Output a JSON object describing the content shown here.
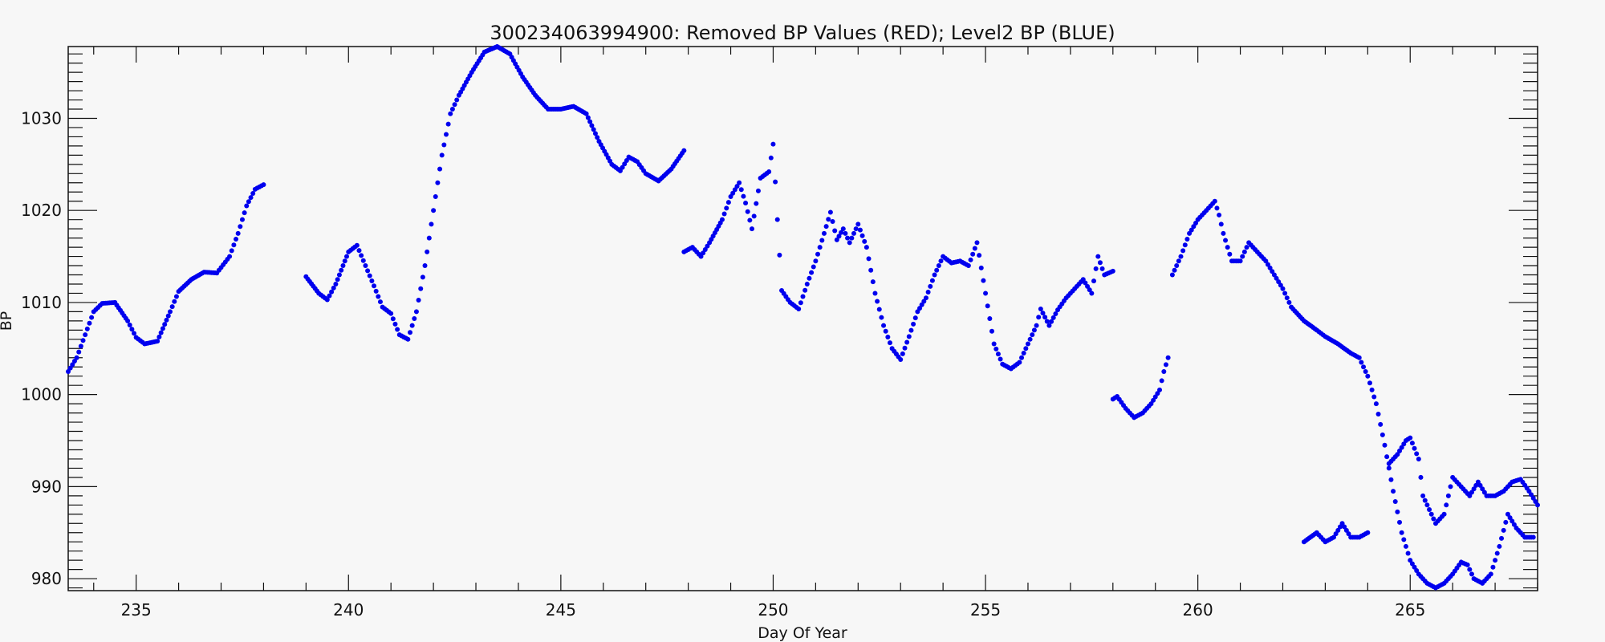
{
  "chart_data": {
    "type": "scatter",
    "title": "300234063994900: Removed BP Values (RED); Level2 BP (BLUE)",
    "xlabel": "Day Of Year",
    "ylabel": "BP",
    "xlim": [
      233.4,
      268.0
    ],
    "ylim": [
      978.7,
      1037.8
    ],
    "x_ticks": [
      235,
      240,
      245,
      250,
      255,
      260,
      265
    ],
    "y_ticks": [
      980,
      990,
      1000,
      1010,
      1020,
      1030
    ],
    "x_tick_labels": [
      "235",
      "240",
      "245",
      "250",
      "255",
      "260",
      "265"
    ],
    "y_tick_labels": [
      "980",
      "990",
      "1000",
      "1010",
      "1020",
      "1030"
    ],
    "grid": false,
    "series": [
      {
        "color": "#0000ee",
        "marker": "dot",
        "segments": [
          [
            [
              233.4,
              1002.5
            ],
            [
              233.6,
              1004.0
            ],
            [
              233.8,
              1006.5
            ],
            [
              234.0,
              1009.0
            ],
            [
              234.2,
              1009.9
            ],
            [
              234.5,
              1010.0
            ],
            [
              234.8,
              1008.0
            ],
            [
              235.0,
              1006.2
            ],
            [
              235.2,
              1005.5
            ],
            [
              235.5,
              1005.8
            ],
            [
              235.8,
              1009.0
            ],
            [
              236.0,
              1011.2
            ],
            [
              236.3,
              1012.5
            ],
            [
              236.6,
              1013.3
            ],
            [
              236.9,
              1013.2
            ],
            [
              237.0,
              1013.8
            ],
            [
              237.2,
              1015.0
            ],
            [
              237.4,
              1017.5
            ],
            [
              237.6,
              1020.5
            ],
            [
              237.8,
              1022.3
            ],
            [
              238.0,
              1022.8
            ]
          ],
          [
            [
              239.0,
              1012.8
            ],
            [
              239.3,
              1011.0
            ],
            [
              239.5,
              1010.3
            ],
            [
              239.7,
              1012.0
            ],
            [
              240.0,
              1015.5
            ],
            [
              240.2,
              1016.2
            ],
            [
              240.4,
              1014.0
            ],
            [
              240.6,
              1011.8
            ],
            [
              240.8,
              1009.5
            ],
            [
              241.0,
              1008.8
            ],
            [
              241.2,
              1006.5
            ],
            [
              241.4,
              1006.0
            ],
            [
              241.6,
              1009.0
            ],
            [
              241.8,
              1014.0
            ],
            [
              242.0,
              1020.0
            ],
            [
              242.2,
              1026.0
            ],
            [
              242.4,
              1030.5
            ],
            [
              242.6,
              1032.5
            ],
            [
              242.9,
              1035.0
            ],
            [
              243.2,
              1037.2
            ],
            [
              243.5,
              1037.8
            ],
            [
              243.8,
              1037.0
            ],
            [
              244.1,
              1034.5
            ],
            [
              244.4,
              1032.5
            ],
            [
              244.7,
              1031.0
            ],
            [
              245.0,
              1031.0
            ],
            [
              245.3,
              1031.3
            ],
            [
              245.6,
              1030.5
            ],
            [
              245.9,
              1027.5
            ],
            [
              246.2,
              1025.0
            ],
            [
              246.4,
              1024.3
            ],
            [
              246.6,
              1025.8
            ],
            [
              246.8,
              1025.3
            ],
            [
              247.0,
              1024.0
            ],
            [
              247.3,
              1023.2
            ],
            [
              247.6,
              1024.5
            ],
            [
              247.9,
              1026.5
            ]
          ],
          [
            [
              247.9,
              1015.5
            ],
            [
              248.1,
              1016.0
            ],
            [
              248.3,
              1015.0
            ],
            [
              248.5,
              1016.5
            ],
            [
              248.8,
              1019.0
            ],
            [
              249.0,
              1021.5
            ],
            [
              249.2,
              1023.0
            ],
            [
              249.35,
              1020.8
            ],
            [
              249.5,
              1018.0
            ],
            [
              249.7,
              1023.5
            ],
            [
              249.9,
              1024.2
            ],
            [
              250.0,
              1027.2
            ],
            [
              250.1,
              1019.0
            ],
            [
              250.2,
              1011.3
            ],
            [
              250.4,
              1010.0
            ],
            [
              250.6,
              1009.3
            ],
            [
              250.8,
              1012.0
            ],
            [
              251.0,
              1014.5
            ],
            [
              251.2,
              1017.5
            ],
            [
              251.35,
              1019.8
            ],
            [
              251.5,
              1016.8
            ],
            [
              251.65,
              1018.0
            ],
            [
              251.8,
              1016.5
            ],
            [
              252.0,
              1018.5
            ],
            [
              252.2,
              1016.0
            ],
            [
              252.4,
              1011.0
            ],
            [
              252.6,
              1007.5
            ],
            [
              252.8,
              1005.0
            ],
            [
              253.0,
              1003.8
            ],
            [
              253.2,
              1006.3
            ],
            [
              253.4,
              1009.0
            ],
            [
              253.6,
              1010.5
            ],
            [
              253.8,
              1013.0
            ],
            [
              254.0,
              1015.0
            ],
            [
              254.2,
              1014.3
            ],
            [
              254.4,
              1014.5
            ],
            [
              254.6,
              1014.0
            ],
            [
              254.8,
              1016.5
            ],
            [
              255.0,
              1011.0
            ],
            [
              255.2,
              1005.5
            ],
            [
              255.4,
              1003.3
            ],
            [
              255.6,
              1002.8
            ],
            [
              255.8,
              1003.5
            ],
            [
              256.0,
              1005.5
            ],
            [
              256.2,
              1007.5
            ],
            [
              256.3,
              1009.3
            ],
            [
              256.5,
              1007.5
            ],
            [
              256.7,
              1009.2
            ],
            [
              256.9,
              1010.5
            ],
            [
              257.1,
              1011.5
            ],
            [
              257.3,
              1012.5
            ],
            [
              257.5,
              1011.0
            ],
            [
              257.65,
              1015.0
            ],
            [
              257.8,
              1013.0
            ],
            [
              258.0,
              1013.4
            ]
          ],
          [
            [
              258.0,
              999.5
            ],
            [
              258.1,
              999.8
            ],
            [
              258.3,
              998.5
            ],
            [
              258.5,
              997.5
            ],
            [
              258.7,
              998.0
            ],
            [
              258.9,
              999.0
            ],
            [
              259.1,
              1000.5
            ],
            [
              259.2,
              1002.5
            ],
            [
              259.3,
              1004.0
            ]
          ],
          [
            [
              259.4,
              1013.0
            ],
            [
              259.6,
              1015.0
            ],
            [
              259.8,
              1017.5
            ],
            [
              260.0,
              1019.0
            ],
            [
              260.2,
              1020.0
            ],
            [
              260.4,
              1021.0
            ],
            [
              260.5,
              1019.5
            ],
            [
              260.6,
              1017.5
            ],
            [
              260.8,
              1014.5
            ],
            [
              261.0,
              1014.5
            ],
            [
              261.2,
              1016.5
            ],
            [
              261.4,
              1015.5
            ],
            [
              261.6,
              1014.5
            ],
            [
              261.8,
              1013.0
            ],
            [
              262.0,
              1011.5
            ],
            [
              262.2,
              1009.5
            ],
            [
              262.5,
              1008.0
            ],
            [
              262.8,
              1007.0
            ],
            [
              263.0,
              1006.3
            ],
            [
              263.3,
              1005.5
            ],
            [
              263.6,
              1004.5
            ],
            [
              263.8,
              1004.0
            ],
            [
              264.0,
              1002.0
            ],
            [
              264.2,
              999.0
            ],
            [
              264.4,
              994.5
            ],
            [
              264.6,
              989.5
            ],
            [
              264.8,
              985.0
            ],
            [
              265.0,
              982.0
            ],
            [
              265.2,
              980.5
            ],
            [
              265.4,
              979.5
            ],
            [
              265.6,
              979.0
            ],
            [
              265.8,
              979.5
            ],
            [
              266.0,
              980.5
            ],
            [
              266.2,
              981.8
            ],
            [
              266.35,
              981.5
            ],
            [
              266.5,
              980.0
            ],
            [
              266.7,
              979.5
            ],
            [
              266.9,
              980.5
            ],
            [
              267.1,
              983.5
            ],
            [
              267.3,
              987.0
            ],
            [
              267.5,
              985.5
            ],
            [
              267.7,
              984.5
            ],
            [
              267.9,
              984.5
            ]
          ],
          [
            [
              262.5,
              984.0
            ],
            [
              262.8,
              985.0
            ],
            [
              263.0,
              984.0
            ],
            [
              263.2,
              984.5
            ],
            [
              263.4,
              986.0
            ],
            [
              263.6,
              984.5
            ],
            [
              263.8,
              984.5
            ],
            [
              264.0,
              985.0
            ]
          ],
          [
            [
              264.5,
              992.5
            ],
            [
              264.7,
              993.5
            ],
            [
              264.9,
              995.0
            ],
            [
              265.0,
              995.3
            ],
            [
              265.2,
              993.0
            ],
            [
              265.3,
              989.0
            ],
            [
              265.5,
              987.0
            ],
            [
              265.6,
              986.0
            ],
            [
              265.8,
              987.0
            ],
            [
              266.0,
              991.0
            ],
            [
              266.2,
              990.0
            ],
            [
              266.4,
              989.0
            ],
            [
              266.6,
              990.5
            ],
            [
              266.8,
              989.0
            ],
            [
              267.0,
              989.0
            ],
            [
              267.2,
              989.5
            ],
            [
              267.4,
              990.5
            ],
            [
              267.6,
              990.8
            ],
            [
              267.8,
              989.5
            ],
            [
              268.0,
              988.0
            ]
          ]
        ]
      }
    ]
  }
}
